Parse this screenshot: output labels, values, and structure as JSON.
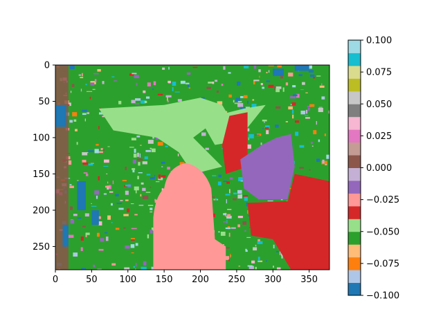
{
  "chart_data": {
    "type": "heatmap",
    "title": "",
    "xlabel": "",
    "ylabel": "",
    "xlim": [
      0,
      378
    ],
    "ylim": [
      282,
      0
    ],
    "x_ticks": [
      0,
      50,
      100,
      150,
      200,
      250,
      300,
      350
    ],
    "y_ticks": [
      0,
      50,
      100,
      150,
      200,
      250
    ],
    "colorbar": {
      "range": [
        -0.1,
        0.1
      ],
      "ticks": [
        "0.100",
        "0.075",
        "0.050",
        "0.025",
        "0.000",
        "−0.025",
        "−0.050",
        "−0.075",
        "−0.100"
      ],
      "colormap": "tab20",
      "colors_bottom_to_top": [
        "#1f77b4",
        "#aec7e8",
        "#ff7f0e",
        "#ffbb78",
        "#2ca02c",
        "#98df8a",
        "#d62728",
        "#ff9896",
        "#9467bd",
        "#c5b0d5",
        "#8c564b",
        "#c49c94",
        "#e377c2",
        "#f7b6d2",
        "#7f7f7f",
        "#c7c7c7",
        "#bcbd22",
        "#dbdb8d",
        "#17becf",
        "#9edae5"
      ]
    },
    "regions": [
      {
        "label": "background",
        "value": -0.045,
        "color": "#2ca02c"
      },
      {
        "label": "upper light area",
        "value": -0.04,
        "color": "#98df8a"
      },
      {
        "label": "central figure",
        "value": -0.028,
        "color": "#ff9896"
      },
      {
        "label": "right block",
        "value": -0.032,
        "color": "#d62728"
      },
      {
        "label": "purple area",
        "value": -0.018,
        "color": "#9467bd"
      },
      {
        "label": "left edge",
        "value": 0.002,
        "color": "#8c564b"
      },
      {
        "label": "scattered blue",
        "value": -0.097,
        "color": "#1f77b4"
      }
    ]
  }
}
